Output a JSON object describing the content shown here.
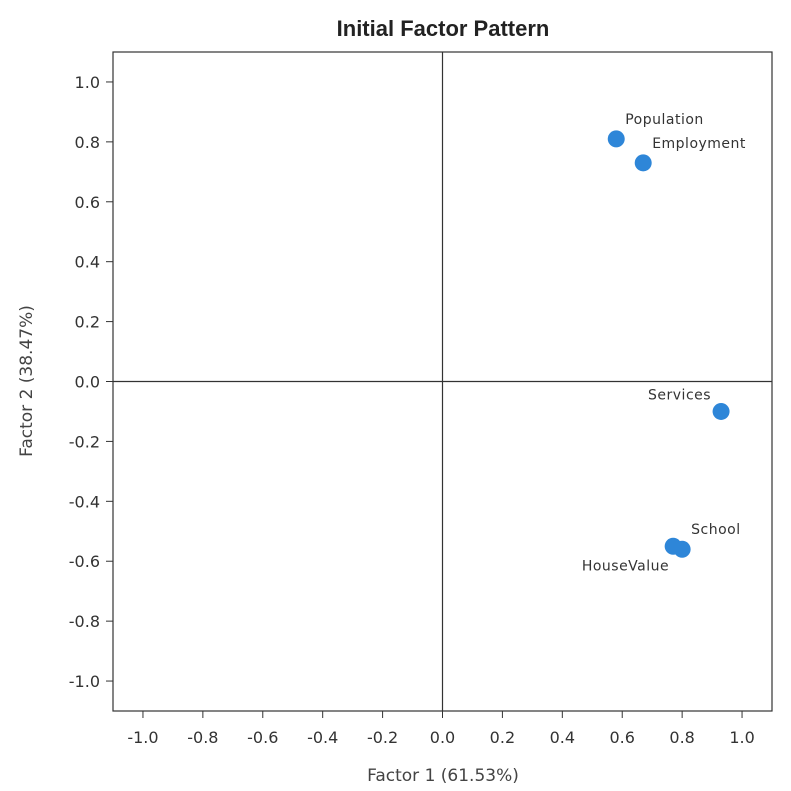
{
  "chart_data": {
    "type": "scatter",
    "title": "Initial Factor Pattern",
    "xlabel": "Factor 1 (61.53%)",
    "ylabel": "Factor 2 (38.47%)",
    "xlim": [
      -1.1,
      1.1
    ],
    "ylim": [
      -1.1,
      1.1
    ],
    "xticks": [
      -1.0,
      -0.8,
      -0.6,
      -0.4,
      -0.2,
      0.0,
      0.2,
      0.4,
      0.6,
      0.8,
      1.0
    ],
    "yticks": [
      -1.0,
      -0.8,
      -0.6,
      -0.4,
      -0.2,
      0.0,
      0.2,
      0.4,
      0.6,
      0.8,
      1.0
    ],
    "tick_labels_x": [
      "-1.0",
      "-0.8",
      "-0.6",
      "-0.4",
      "-0.2",
      "0.0",
      "0.2",
      "0.4",
      "0.6",
      "0.8",
      "1.0"
    ],
    "tick_labels_y": [
      "-1.0",
      "-0.8",
      "-0.6",
      "-0.4",
      "-0.2",
      "0.0",
      "0.2",
      "0.4",
      "0.6",
      "0.8",
      "1.0"
    ],
    "reference_lines": {
      "x": 0.0,
      "y": 0.0
    },
    "grid": false,
    "marker_color": "#2e86d8",
    "points": [
      {
        "label": "Population",
        "x": 0.58,
        "y": 0.81,
        "label_position": "above-right"
      },
      {
        "label": "Employment",
        "x": 0.67,
        "y": 0.73,
        "label_position": "above-right"
      },
      {
        "label": "Services",
        "x": 0.93,
        "y": -0.1,
        "label_position": "above-left"
      },
      {
        "label": "School",
        "x": 0.8,
        "y": -0.56,
        "label_position": "above-right"
      },
      {
        "label": "HouseValue",
        "x": 0.77,
        "y": -0.55,
        "label_position": "below-left"
      }
    ]
  }
}
